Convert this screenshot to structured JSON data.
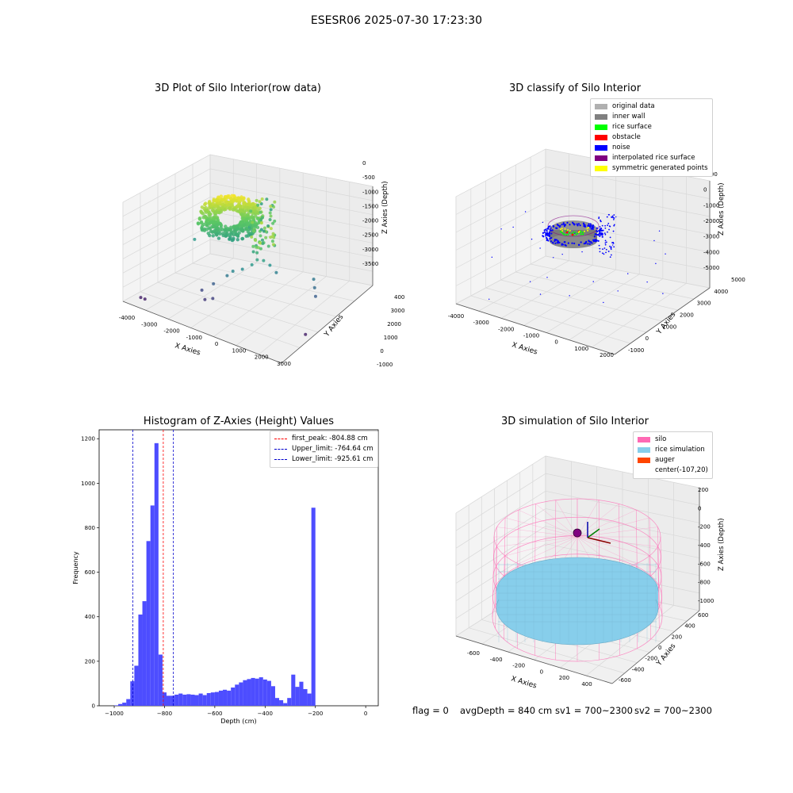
{
  "figure": {
    "suptitle": "ESESR06 2025-07-30 17:23:30",
    "footer": {
      "flag": "flag = 0",
      "avg_depth": "avgDepth = 840 cm",
      "sv1": "sv1 = 700~2300",
      "sv2": "sv2 = 700~2300"
    }
  },
  "colors": {
    "histogram_bar": "#4d4dff",
    "first_peak": "#ff0000",
    "limits": "#0000cc",
    "silo": "#ff69b4",
    "rice_simulation": "#87ceeb",
    "auger": "#ff4500",
    "original_data": "#b0b0b0",
    "inner_wall": "#808080",
    "rice_surface": "#00ff00",
    "obstacle": "#ff0000",
    "noise": "#0000ff",
    "interpolated_rice_surface": "#800080",
    "symmetric_generated_points": "#ffff00"
  },
  "chart_data": [
    {
      "type": "scatter",
      "title": "3D Plot of Silo Interior(row data)",
      "xlabel": "X Axies",
      "ylabel": "Y Axies",
      "zlabel": "Z Axies (Depth)",
      "x_ticks": [
        "-4000",
        "-3000",
        "-2000",
        "-1000",
        "0",
        "1000",
        "2000",
        "3000"
      ],
      "y_ticks": [
        "-1000",
        "0",
        "1000",
        "2000",
        "3000",
        "4000"
      ],
      "z_ticks": [
        "0",
        "-500",
        "-1000",
        "-1500",
        "-2000",
        "-2500",
        "-3000",
        "-3500"
      ],
      "colormap": "viridis",
      "points": [
        {
          "x": 200,
          "y": 1500,
          "z": -1650
        },
        {
          "x": 350,
          "y": 1700,
          "z": -1700
        },
        {
          "x": 500,
          "y": 1900,
          "z": -1900
        },
        {
          "x": 650,
          "y": 2100,
          "z": -2200
        },
        {
          "x": 100,
          "y": 1300,
          "z": -1800
        },
        {
          "x": -200,
          "y": 1100,
          "z": -2000
        },
        {
          "x": -500,
          "y": 900,
          "z": -2100
        },
        {
          "x": -700,
          "y": 800,
          "z": -2300
        },
        {
          "x": -1200,
          "y": 600,
          "z": -2700
        },
        {
          "x": -1600,
          "y": 400,
          "z": -3000
        },
        {
          "x": -1000,
          "y": 300,
          "z": -3100
        },
        {
          "x": -1300,
          "y": 200,
          "z": -3200
        },
        {
          "x": 1900,
          "y": 2800,
          "z": -2300
        },
        {
          "x": 2100,
          "y": 2600,
          "z": -2500
        },
        {
          "x": 2300,
          "y": 2400,
          "z": -2700
        },
        {
          "x": -3600,
          "y": -800,
          "z": -3500
        },
        {
          "x": -3400,
          "y": -800,
          "z": -3500
        },
        {
          "x": 2900,
          "y": 1000,
          "z": -3500
        },
        {
          "x": -2800,
          "y": 1500,
          "z": -1800
        }
      ]
    },
    {
      "type": "scatter",
      "title": "3D classify of Silo Interior",
      "xlabel": "X Axies",
      "ylabel": "Y Axies",
      "zlabel": "Z Axies (Depth)",
      "x_ticks": [
        "-4000",
        "-3000",
        "-2000",
        "-1000",
        "0",
        "1000",
        "2000"
      ],
      "y_ticks": [
        "-1000",
        "0",
        "1000",
        "2000",
        "3000",
        "4000",
        "5000"
      ],
      "z_ticks": [
        "1000",
        "0",
        "-1000",
        "-2000",
        "-3000",
        "-4000",
        "-5000"
      ],
      "legend": [
        {
          "label": "original data",
          "color": "#b0b0b0"
        },
        {
          "label": "inner wall",
          "color": "#808080"
        },
        {
          "label": "rice surface",
          "color": "#00ff00"
        },
        {
          "label": "obstacle",
          "color": "#ff0000"
        },
        {
          "label": "noise",
          "color": "#0000ff"
        },
        {
          "label": "interpolated rice surface",
          "color": "#800080"
        },
        {
          "label": "symmetric generated points",
          "color": "#ffff00"
        }
      ]
    },
    {
      "type": "bar",
      "title": "Histogram of Z-Axies (Height) Values",
      "xlabel": "Depth (cm)",
      "ylabel": "Frequency",
      "xlim": [
        -1060,
        50
      ],
      "ylim": [
        0,
        1240
      ],
      "x_ticks": [
        -1000,
        -800,
        -600,
        -400,
        -200,
        0
      ],
      "y_ticks": [
        0,
        200,
        400,
        600,
        800,
        1000,
        1200
      ],
      "bin_start": -1000,
      "bin_width": 16,
      "values": [
        2,
        8,
        14,
        30,
        110,
        180,
        410,
        470,
        740,
        900,
        1180,
        230,
        60,
        45,
        45,
        50,
        55,
        50,
        52,
        50,
        48,
        55,
        48,
        57,
        60,
        62,
        68,
        72,
        68,
        82,
        95,
        105,
        115,
        120,
        125,
        122,
        128,
        118,
        112,
        88,
        35,
        25,
        12,
        35,
        140,
        85,
        108,
        75,
        55,
        890
      ],
      "vlines": [
        {
          "label": "first_peak: -804.88 cm",
          "value": -804.88,
          "color": "#ff0000"
        },
        {
          "label": "Upper_limit: -764.64 cm",
          "value": -764.64,
          "color": "#0000cc"
        },
        {
          "label": "Lower_limit: -925.61 cm",
          "value": -925.61,
          "color": "#0000cc"
        }
      ],
      "legend_position": "top-right"
    },
    {
      "type": "scatter",
      "title": "3D simulation of Silo Interior",
      "xlabel": "X Axies",
      "ylabel": "Y Axies",
      "zlabel": "Z Axies (Depth)",
      "x_ticks": [
        "-600",
        "-400",
        "-200",
        "0",
        "200",
        "400"
      ],
      "y_ticks": [
        "-600",
        "-400",
        "-200",
        "0",
        "200",
        "400",
        "600"
      ],
      "z_ticks": [
        "200",
        "0",
        "-200",
        "-400",
        "-600",
        "-800",
        "-1000"
      ],
      "legend": [
        {
          "label": "silo",
          "color": "#ff69b4"
        },
        {
          "label": "rice simulation",
          "color": "#87ceeb"
        },
        {
          "label": "auger",
          "color": "#ff4500"
        },
        {
          "label": "center(-107,20)",
          "color": ""
        }
      ]
    }
  ]
}
